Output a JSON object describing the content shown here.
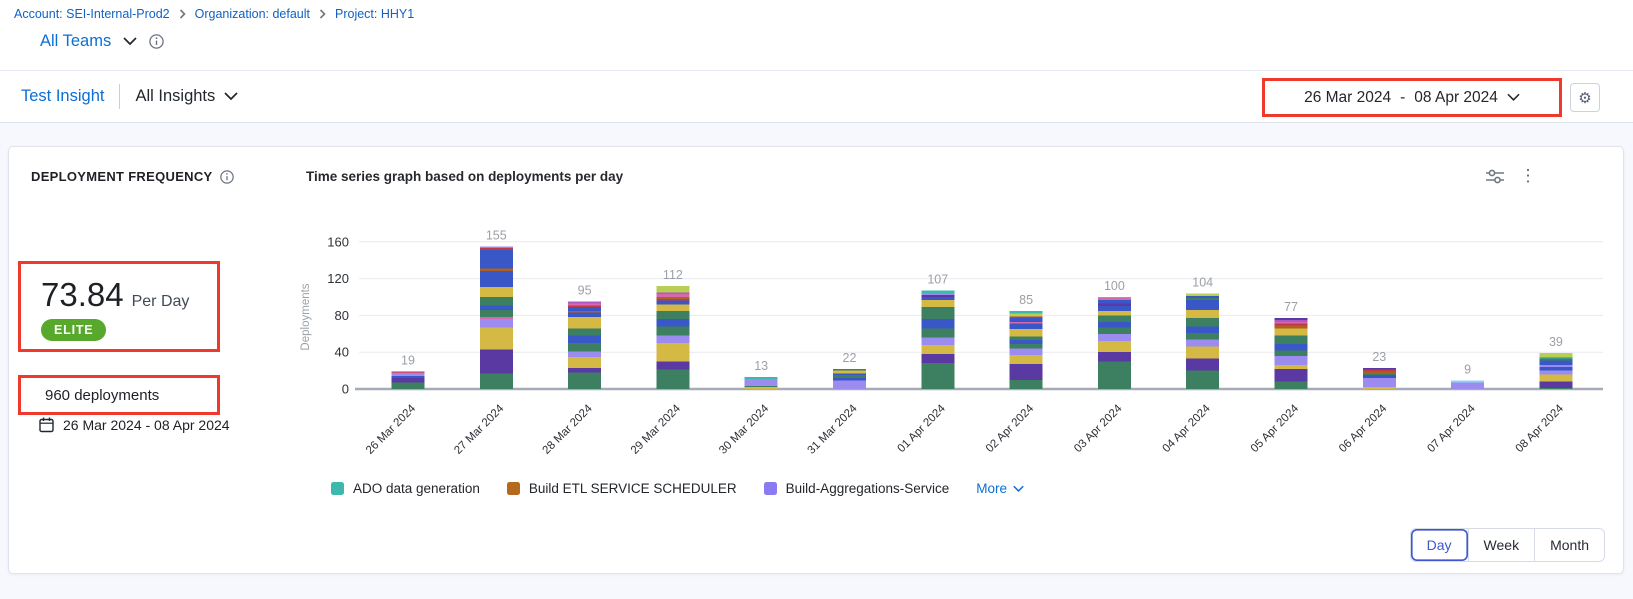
{
  "colors": {
    "link_blue": "#0b6fd4",
    "accent_blue": "#3c57cf",
    "elite_green": "#57a82b",
    "annotation_red": "#ee392c"
  },
  "icons": {
    "gear": "⚙",
    "kebab": "⋮"
  },
  "breadcrumb": {
    "items": [
      {
        "label": "Account: SEI-Internal-Prod2"
      },
      {
        "label": "Organization: default"
      },
      {
        "label": "Project: HHY1"
      }
    ]
  },
  "teams": {
    "label": "All Teams"
  },
  "insight": {
    "name": "Test Insight",
    "scope": "All Insights",
    "date_start": "26 Mar 2024",
    "date_separator": "-",
    "date_end": "08 Apr 2024"
  },
  "widget": {
    "title": "DEPLOYMENT FREQUENCY",
    "metric_value": "73.84",
    "metric_unit": "Per Day",
    "badge": "ELITE",
    "total_label": "960 deployments",
    "date_range": "26 Mar 2024 - 08 Apr 2024",
    "chart_title": "Time series graph based on deployments per day"
  },
  "legend": [
    {
      "label": "ADO data generation",
      "color": "#3db8ad"
    },
    {
      "label": "Build ETL SERVICE SCHEDULER",
      "color": "#b5691f"
    },
    {
      "label": "Build-Aggregations-Service",
      "color": "#8a7cf0"
    }
  ],
  "legend_more": "More",
  "granularity": {
    "options": [
      "Day",
      "Week",
      "Month"
    ],
    "selected": "Day"
  },
  "chart_data": {
    "type": "bar",
    "stacked": true,
    "title": "Time series graph based on deployments per day",
    "ylabel": "Deployments",
    "yticks": [
      0,
      40,
      80,
      120,
      160
    ],
    "ylim": [
      0,
      170
    ],
    "grid": true,
    "legend_position": "bottom",
    "categories": [
      "26 Mar 2024",
      "27 Mar 2024",
      "28 Mar 2024",
      "29 Mar 2024",
      "30 Mar 2024",
      "31 Mar 2024",
      "01 Apr 2024",
      "02 Apr 2024",
      "03 Apr 2024",
      "04 Apr 2024",
      "05 Apr 2024",
      "06 Apr 2024",
      "07 Apr 2024",
      "08 Apr 2024"
    ],
    "totals": [
      19,
      155,
      95,
      112,
      13,
      22,
      107,
      85,
      100,
      104,
      77,
      23,
      9,
      39
    ],
    "palette": {
      "green": "#3d7f61",
      "purple": "#5a39a2",
      "yellow": "#d4ba45",
      "lavender": "#9c8cf0",
      "blue": "#3a57c8",
      "orange": "#b06020",
      "red": "#c03a47",
      "pink": "#d668ad",
      "magenta": "#ae58c6",
      "teal": "#3db8ad",
      "lightgreen": "#b8cf54",
      "lightblue": "#8fd3f3"
    },
    "bars": [
      {
        "date": "26 Mar 2024",
        "total": 19,
        "segments": [
          [
            "green",
            7
          ],
          [
            "purple",
            5
          ],
          [
            "blue",
            2
          ],
          [
            "lavender",
            3
          ],
          [
            "pink",
            1
          ],
          [
            "red",
            1
          ]
        ]
      },
      {
        "date": "27 Mar 2024",
        "total": 155,
        "segments": [
          [
            "green",
            17
          ],
          [
            "purple",
            26
          ],
          [
            "yellow",
            24
          ],
          [
            "lavender",
            9
          ],
          [
            "pink",
            2
          ],
          [
            "green",
            8
          ],
          [
            "blue",
            5
          ],
          [
            "green",
            9
          ],
          [
            "yellow",
            11
          ],
          [
            "blue",
            17
          ],
          [
            "orange",
            3
          ],
          [
            "blue",
            20
          ],
          [
            "red",
            2
          ],
          [
            "pink",
            1
          ],
          [
            "lavender",
            1
          ]
        ]
      },
      {
        "date": "28 Mar 2024",
        "total": 95,
        "segments": [
          [
            "green",
            18
          ],
          [
            "purple",
            5
          ],
          [
            "yellow",
            12
          ],
          [
            "lavender",
            6
          ],
          [
            "green",
            9
          ],
          [
            "blue",
            8
          ],
          [
            "green",
            8
          ],
          [
            "yellow",
            12
          ],
          [
            "blue",
            5
          ],
          [
            "orange",
            2
          ],
          [
            "blue",
            4
          ],
          [
            "red",
            2
          ],
          [
            "pink",
            2
          ],
          [
            "magenta",
            2
          ]
        ]
      },
      {
        "date": "29 Mar 2024",
        "total": 112,
        "segments": [
          [
            "green",
            21
          ],
          [
            "purple",
            9
          ],
          [
            "yellow",
            20
          ],
          [
            "lavender",
            8
          ],
          [
            "green",
            10
          ],
          [
            "blue",
            8
          ],
          [
            "green",
            9
          ],
          [
            "yellow",
            7
          ],
          [
            "blue",
            4
          ],
          [
            "red",
            2
          ],
          [
            "orange",
            2
          ],
          [
            "pink",
            3
          ],
          [
            "magenta",
            2
          ],
          [
            "lightgreen",
            7
          ]
        ]
      },
      {
        "date": "30 Mar 2024",
        "total": 13,
        "segments": [
          [
            "yellow",
            2
          ],
          [
            "green",
            1
          ],
          [
            "lavender",
            8
          ],
          [
            "teal",
            2
          ]
        ]
      },
      {
        "date": "31 Mar 2024",
        "total": 22,
        "segments": [
          [
            "lavender",
            9
          ],
          [
            "blue",
            3
          ],
          [
            "green",
            3
          ],
          [
            "blue",
            2
          ],
          [
            "yellow",
            3
          ],
          [
            "green",
            2
          ]
        ]
      },
      {
        "date": "01 Apr 2024",
        "total": 107,
        "segments": [
          [
            "green",
            28
          ],
          [
            "purple",
            10
          ],
          [
            "yellow",
            10
          ],
          [
            "lavender",
            8
          ],
          [
            "green",
            10
          ],
          [
            "blue",
            10
          ],
          [
            "green",
            13
          ],
          [
            "yellow",
            8
          ],
          [
            "blue",
            3
          ],
          [
            "purple",
            2
          ],
          [
            "lavender",
            2
          ],
          [
            "teal",
            3
          ]
        ]
      },
      {
        "date": "02 Apr 2024",
        "total": 85,
        "segments": [
          [
            "green",
            10
          ],
          [
            "purple",
            17
          ],
          [
            "yellow",
            10
          ],
          [
            "lavender",
            7
          ],
          [
            "green",
            5
          ],
          [
            "blue",
            4
          ],
          [
            "green",
            4
          ],
          [
            "yellow",
            8
          ],
          [
            "blue",
            6
          ],
          [
            "pink",
            2
          ],
          [
            "blue",
            4
          ],
          [
            "red",
            2
          ],
          [
            "lightgreen",
            3
          ],
          [
            "teal",
            3
          ]
        ]
      },
      {
        "date": "03 Apr 2024",
        "total": 100,
        "segments": [
          [
            "green",
            30
          ],
          [
            "purple",
            10
          ],
          [
            "yellow",
            12
          ],
          [
            "lavender",
            8
          ],
          [
            "green",
            7
          ],
          [
            "blue",
            6
          ],
          [
            "green",
            7
          ],
          [
            "yellow",
            5
          ],
          [
            "blue",
            5
          ],
          [
            "purple",
            3
          ],
          [
            "blue",
            4
          ],
          [
            "pink",
            2
          ],
          [
            "lavender",
            1
          ]
        ]
      },
      {
        "date": "04 Apr 2024",
        "total": 104,
        "segments": [
          [
            "green",
            20
          ],
          [
            "purple",
            13
          ],
          [
            "yellow",
            13
          ],
          [
            "lavender",
            8
          ],
          [
            "green",
            7
          ],
          [
            "blue",
            7
          ],
          [
            "green",
            9
          ],
          [
            "yellow",
            9
          ],
          [
            "blue",
            11
          ],
          [
            "green",
            2
          ],
          [
            "blue",
            2
          ],
          [
            "lightgreen",
            3
          ]
        ]
      },
      {
        "date": "05 Apr 2024",
        "total": 77,
        "segments": [
          [
            "green",
            8
          ],
          [
            "purple",
            14
          ],
          [
            "yellow",
            4
          ],
          [
            "lavender",
            10
          ],
          [
            "green",
            6
          ],
          [
            "blue",
            7
          ],
          [
            "green",
            9
          ],
          [
            "yellow",
            8
          ],
          [
            "orange",
            3
          ],
          [
            "red",
            2
          ],
          [
            "pink",
            2
          ],
          [
            "magenta",
            2
          ],
          [
            "purple",
            2
          ]
        ]
      },
      {
        "date": "06 Apr 2024",
        "total": 23,
        "segments": [
          [
            "yellow",
            2
          ],
          [
            "lavender",
            10
          ],
          [
            "blue",
            3
          ],
          [
            "green",
            2
          ],
          [
            "orange",
            2
          ],
          [
            "red",
            2
          ],
          [
            "purple",
            2
          ]
        ]
      },
      {
        "date": "07 Apr 2024",
        "total": 9,
        "segments": [
          [
            "lavender",
            7
          ],
          [
            "lightblue",
            2
          ]
        ]
      },
      {
        "date": "08 Apr 2024",
        "total": 39,
        "segments": [
          [
            "green",
            1
          ],
          [
            "purple",
            7
          ],
          [
            "yellow",
            8
          ],
          [
            "lavender",
            4
          ],
          [
            "blue",
            4
          ],
          [
            "lavender",
            2
          ],
          [
            "blue",
            5
          ],
          [
            "green",
            2
          ],
          [
            "teal",
            2
          ],
          [
            "lightgreen",
            4
          ]
        ]
      }
    ]
  }
}
